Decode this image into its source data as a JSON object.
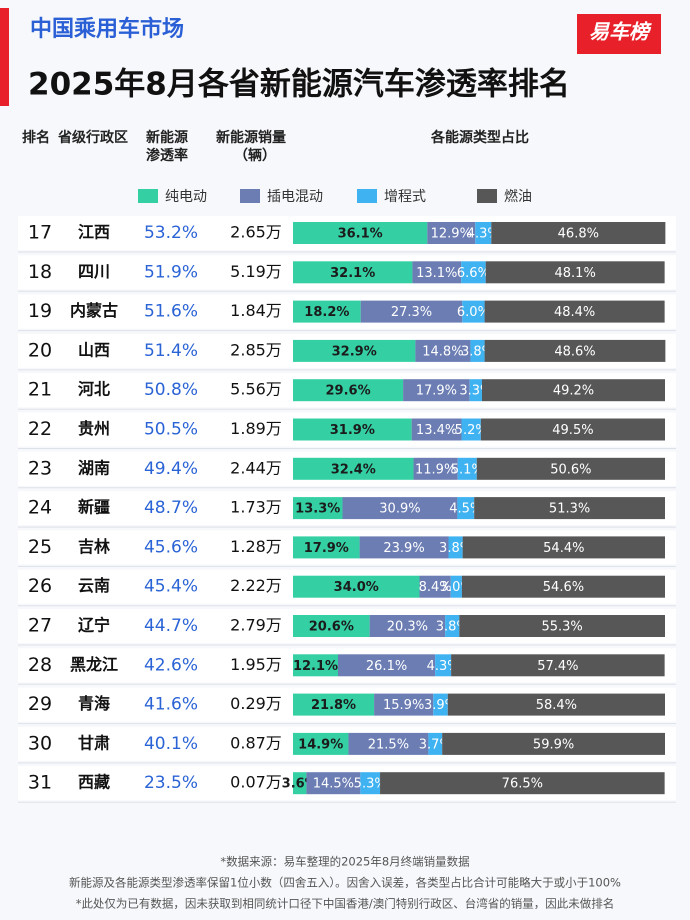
{
  "chart_data": {
    "type": "stacked-bar",
    "subtitle": "中国乘用车市场",
    "title": "2025年8月各省新能源汽车渗透率排名",
    "logo": "易车榜",
    "columns": [
      [
        "排名"
      ],
      [
        "省级行政区"
      ],
      [
        "新能源",
        "渗透率"
      ],
      [
        "新能源销量",
        "（辆）"
      ],
      [
        "各能源类型占比"
      ]
    ],
    "ranks": [
      17,
      18,
      19,
      20,
      21,
      22,
      23,
      24,
      25,
      26,
      27,
      28,
      29,
      30,
      31
    ],
    "categories": [
      "江西",
      "四川",
      "内蒙古",
      "山西",
      "河北",
      "贵州",
      "湖南",
      "新疆",
      "吉林",
      "云南",
      "辽宁",
      "黑龙江",
      "青海",
      "甘肃",
      "西藏"
    ],
    "penetration": [
      "53.2%",
      "51.9%",
      "51.6%",
      "51.4%",
      "50.8%",
      "50.5%",
      "49.4%",
      "48.7%",
      "45.6%",
      "45.4%",
      "44.7%",
      "42.6%",
      "41.6%",
      "40.1%",
      "23.5%"
    ],
    "sales": [
      "2.65万",
      "5.19万",
      "1.84万",
      "2.85万",
      "5.56万",
      "1.89万",
      "2.44万",
      "1.73万",
      "1.28万",
      "2.22万",
      "2.79万",
      "1.95万",
      "0.29万",
      "0.87万",
      "0.07万"
    ],
    "xlim": [
      0,
      100
    ],
    "series": [
      {
        "name": "纯电动",
        "color": "#34d0a4",
        "values": [
          36.1,
          32.1,
          18.2,
          32.9,
          29.6,
          31.9,
          32.4,
          13.3,
          17.9,
          34.0,
          20.6,
          12.1,
          21.8,
          14.9,
          3.6
        ],
        "value_labels": [
          "36.1%",
          "32.1%",
          "18.2%",
          "32.9%",
          "29.6%",
          "31.9%",
          "32.4%",
          "13.3%",
          "17.9%",
          "34.0%",
          "20.6%",
          "12.1%",
          "21.8%",
          "14.9%",
          "3.6%"
        ]
      },
      {
        "name": "插电混动",
        "color": "#6b7db3",
        "values": [
          12.9,
          13.1,
          27.3,
          14.8,
          17.9,
          13.4,
          11.9,
          30.9,
          23.9,
          8.4,
          20.3,
          26.1,
          15.9,
          21.5,
          14.5
        ],
        "value_labels": [
          "12.9%",
          "13.1%",
          "27.3%",
          "14.8%",
          "17.9%",
          "13.4%",
          "11.9%",
          "30.9%",
          "23.9%",
          "8.4%",
          "20.3%",
          "26.1%",
          "15.9%",
          "21.5%",
          "14.5%"
        ]
      },
      {
        "name": "增程式",
        "color": "#3fb2f2",
        "values": [
          4.3,
          6.6,
          6.0,
          3.8,
          3.3,
          5.2,
          5.1,
          4.5,
          3.8,
          3.0,
          3.8,
          4.3,
          3.9,
          3.7,
          5.3
        ],
        "value_labels": [
          "4.3%",
          "6.6%",
          "6.0%",
          "3.8%",
          "3.3%",
          "5.2%",
          "5.1%",
          "4.5%",
          "3.8%",
          "3.0%",
          "3.8%",
          "4.3%",
          "3.9%",
          "3.7%",
          "5.3%"
        ]
      },
      {
        "name": "燃油",
        "color": "#575757",
        "values": [
          46.8,
          48.1,
          48.4,
          48.6,
          49.2,
          49.5,
          50.6,
          51.3,
          54.4,
          54.6,
          55.3,
          57.4,
          58.4,
          59.9,
          76.5
        ],
        "value_labels": [
          "46.8%",
          "48.1%",
          "48.4%",
          "48.6%",
          "49.2%",
          "49.5%",
          "50.6%",
          "51.3%",
          "54.4%",
          "54.6%",
          "55.3%",
          "57.4%",
          "58.4%",
          "59.9%",
          "76.5%"
        ]
      }
    ],
    "notes": [
      "*数据来源：易车整理的2025年8月终端销量数据",
      "新能源及各能源类型渗透率保留1位小数（四舍五入）。因舍入误差，各类型占比合计可能略大于或小于100%",
      "*此处仅为已有数据，因未获取到相同统计口径下中国香港/澳门特别行政区、台湾省的销量，因此未做排名"
    ]
  }
}
